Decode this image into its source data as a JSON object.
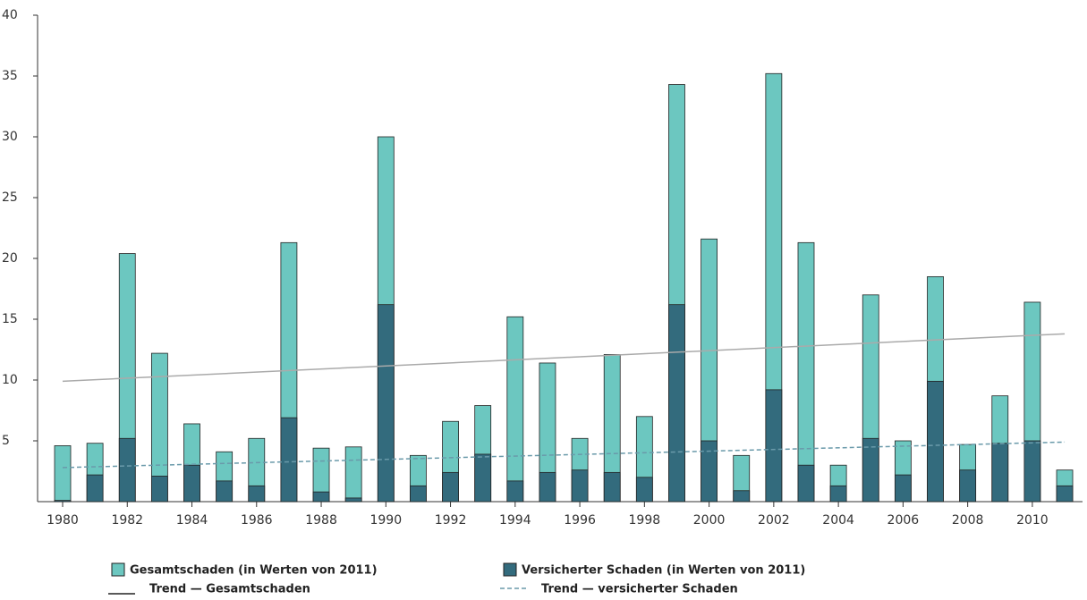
{
  "chart_data": {
    "type": "bar",
    "categories": [
      "1980",
      null,
      "1982",
      null,
      "1984",
      null,
      "1986",
      null,
      "1988",
      null,
      "1990",
      null,
      "1992",
      null,
      "1994",
      null,
      "1996",
      null,
      "1998",
      null,
      "2000",
      null,
      "2002",
      null,
      "2004",
      null,
      "2006",
      null,
      "2008",
      null,
      "2010",
      null
    ],
    "series": [
      {
        "name": "Gesamtschaden (in Werten von 2011)",
        "color": "#6cc7c0",
        "values": [
          4.6,
          4.8,
          20.4,
          12.2,
          6.4,
          4.1,
          5.2,
          21.3,
          4.4,
          4.5,
          30.0,
          3.8,
          6.6,
          7.9,
          15.2,
          11.4,
          5.2,
          12.1,
          7.0,
          34.3,
          21.6,
          3.8,
          35.2,
          21.3,
          3.0,
          17.0,
          5.0,
          18.5,
          4.7,
          8.7,
          16.4,
          2.6
        ]
      },
      {
        "name": "Versicherter Schaden (in Werten von 2011)",
        "color": "#336b7d",
        "values": [
          0.1,
          2.2,
          5.2,
          2.1,
          3.0,
          1.7,
          1.3,
          6.9,
          0.8,
          0.3,
          16.2,
          1.3,
          2.4,
          3.9,
          1.7,
          2.4,
          2.6,
          2.4,
          2.0,
          16.2,
          5.0,
          0.9,
          9.2,
          3.0,
          1.3,
          5.2,
          2.2,
          9.9,
          2.6,
          4.8,
          5.0,
          1.3
        ]
      }
    ],
    "trends": [
      {
        "name": "Trend — Gesamtschaden",
        "color": "#aaaaaa",
        "dashed": false,
        "values": [
          9.9,
          13.8
        ]
      },
      {
        "name": "Trend — versicherter Schaden",
        "color": "#6a9aaa",
        "dashed": true,
        "values": [
          2.8,
          4.9
        ]
      }
    ],
    "ylim": [
      0,
      40
    ],
    "yticks": [
      5,
      10,
      15,
      20,
      25,
      30,
      35,
      40
    ]
  }
}
